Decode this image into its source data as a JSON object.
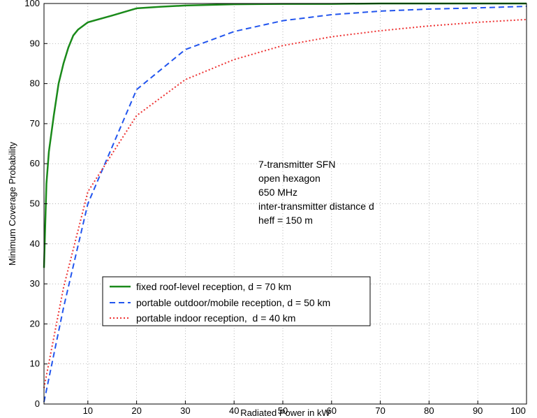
{
  "chart_data": {
    "type": "line",
    "title": "",
    "xlabel": "Radiated Power in kW",
    "ylabel": "Minimum Coverage Probability",
    "xlim": [
      1,
      100
    ],
    "ylim": [
      0,
      100
    ],
    "x_ticks": [
      10,
      20,
      30,
      40,
      50,
      60,
      70,
      80,
      90,
      100
    ],
    "y_ticks": [
      0,
      10,
      20,
      30,
      40,
      50,
      60,
      70,
      80,
      90,
      100
    ],
    "grid": true,
    "legend_position": "bottom-left",
    "annotation": [
      "7-transmitter SFN",
      "open hexagon",
      "650 MHz",
      "inter-transmitter distance d",
      "heff = 150 m"
    ],
    "series": [
      {
        "name": "fixed roof-level reception, d = 70 km",
        "color": "#1a8a1a",
        "style": "solid",
        "x": [
          1,
          1.5,
          2,
          3,
          4,
          5,
          6,
          7,
          8,
          10,
          15,
          20,
          25,
          30,
          40,
          50,
          60,
          70,
          80,
          90,
          100
        ],
        "y": [
          34,
          55,
          63,
          72,
          80,
          85,
          89,
          92,
          93.5,
          95.3,
          97,
          98.8,
          99.2,
          99.5,
          99.8,
          99.9,
          99.9,
          100,
          100,
          100,
          100
        ]
      },
      {
        "name": "portable outdoor/mobile reception, d = 50 km",
        "color": "#2255ee",
        "style": "dashed",
        "x": [
          1,
          5,
          10,
          20,
          30,
          40,
          50,
          60,
          70,
          80,
          90,
          100
        ],
        "y": [
          0.5,
          24,
          50,
          78.5,
          88.5,
          93,
          95.7,
          97.2,
          98.1,
          98.6,
          98.9,
          99.3
        ]
      },
      {
        "name": "portable indoor reception,  d = 40 km",
        "color": "#ee3333",
        "style": "dotted",
        "x": [
          1,
          5,
          10,
          20,
          30,
          40,
          50,
          60,
          70,
          80,
          90,
          100
        ],
        "y": [
          4,
          29,
          53,
          72,
          81,
          86,
          89.5,
          91.7,
          93.2,
          94.4,
          95.3,
          96
        ]
      }
    ]
  }
}
